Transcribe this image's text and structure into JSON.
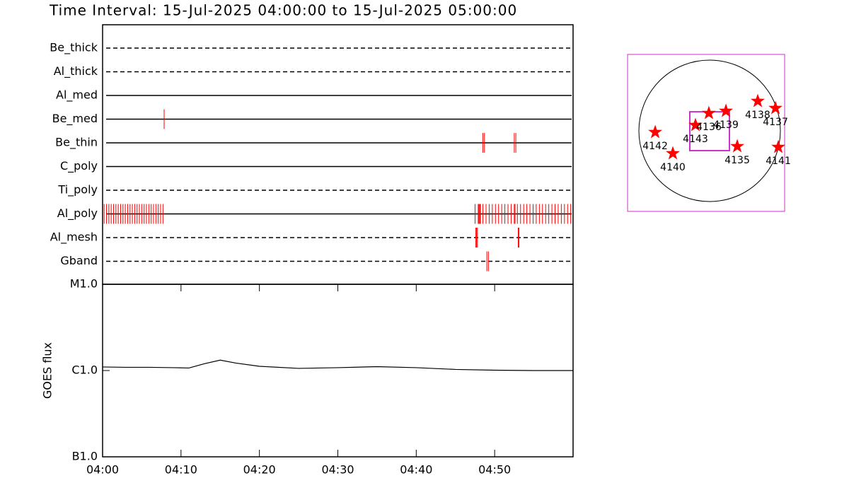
{
  "title": "Time Interval: 15-Jul-2025 04:00:00 to 15-Jul-2025 05:00:00",
  "chart_data": [
    {
      "type": "timeline",
      "categories": [
        "Be_thick",
        "Al_thick",
        "Al_med",
        "Be_med",
        "Be_thin",
        "C_poly",
        "Ti_poly",
        "Al_poly",
        "Al_mesh",
        "Gband"
      ],
      "line_styles": [
        "dashed",
        "dashed",
        "solid",
        "solid",
        "solid",
        "solid",
        "dashed",
        "solid",
        "dashed",
        "dashed"
      ],
      "events": [
        [],
        [],
        [],
        [
          7.85
        ],
        [
          48.5,
          48.7,
          52.5,
          52.7
        ],
        [],
        [],
        [
          0.2,
          0.5,
          0.8,
          1.1,
          1.4,
          1.7,
          2.0,
          2.3,
          2.6,
          2.9,
          3.2,
          3.5,
          3.8,
          4.1,
          4.4,
          4.7,
          5.0,
          5.3,
          5.6,
          5.9,
          6.2,
          6.5,
          6.8,
          7.1,
          7.4,
          7.7,
          47.5,
          47.9,
          48.0,
          48.1,
          48.2,
          48.5,
          48.9,
          49.3,
          49.7,
          50.1,
          50.5,
          50.9,
          51.3,
          51.7,
          52.1,
          52.5,
          52.6,
          52.9,
          53.3,
          53.7,
          54.1,
          54.5,
          54.9,
          55.3,
          55.7,
          56.1,
          56.5,
          56.9,
          57.3,
          57.7,
          58.1,
          58.5,
          58.9,
          59.3,
          59.7
        ],
        [
          47.6,
          47.7,
          47.8,
          53.0,
          53.1
        ],
        [
          49.0,
          49.2
        ]
      ],
      "color": "#ff0000",
      "xlim": [
        0,
        60
      ]
    },
    {
      "type": "line",
      "ylabel": "GOES flux",
      "x": [
        0,
        3,
        6,
        9,
        11,
        13,
        15,
        17,
        20,
        25,
        30,
        35,
        40,
        45,
        50,
        55,
        60
      ],
      "values": [
        1.1e-06,
        1.09e-06,
        1.09e-06,
        1.08e-06,
        1.07e-06,
        1.2e-06,
        1.32e-06,
        1.22e-06,
        1.12e-06,
        1.06e-06,
        1.08e-06,
        1.11e-06,
        1.08e-06,
        1.03e-06,
        1.01e-06,
        1e-06,
        1e-06
      ],
      "color": "#000000",
      "log_scale": true,
      "ylim": [
        1e-07,
        1e-05
      ],
      "yticks": [
        {
          "value": 1e-07,
          "label": "B1.0"
        },
        {
          "value": 1e-06,
          "label": "C1.0"
        },
        {
          "value": 1e-05,
          "label": "M1.0"
        }
      ],
      "xlim": [
        0,
        60
      ],
      "xticks": [
        {
          "value": 0,
          "label": "04:00"
        },
        {
          "value": 10,
          "label": "04:10"
        },
        {
          "value": 20,
          "label": "04:20"
        },
        {
          "value": 30,
          "label": "04:30"
        },
        {
          "value": 40,
          "label": "04:40"
        },
        {
          "value": 50,
          "label": "04:50"
        }
      ]
    },
    {
      "type": "map",
      "solar_radius": 950,
      "regions": [
        {
          "label": "4142",
          "x": -731,
          "y": -19
        },
        {
          "label": "4140",
          "x": -494,
          "y": -304
        },
        {
          "label": "4143",
          "x": -190,
          "y": 76
        },
        {
          "label": "4136",
          "x": -10,
          "y": 237
        },
        {
          "label": "4139",
          "x": 219,
          "y": 266
        },
        {
          "label": "4138",
          "x": 646,
          "y": 399
        },
        {
          "label": "4137",
          "x": 884,
          "y": 304
        },
        {
          "label": "4135",
          "x": 371,
          "y": -209
        },
        {
          "label": "4141",
          "x": 922,
          "y": -219
        }
      ],
      "color": "#ff0000",
      "fov_color": "#cc33cc",
      "fov": {
        "xc": -47,
        "yc": -28,
        "width": 2109,
        "height": 2109
      },
      "inner_fov": {
        "xc": 0,
        "yc": -5,
        "width": 532,
        "height": 522
      }
    }
  ]
}
